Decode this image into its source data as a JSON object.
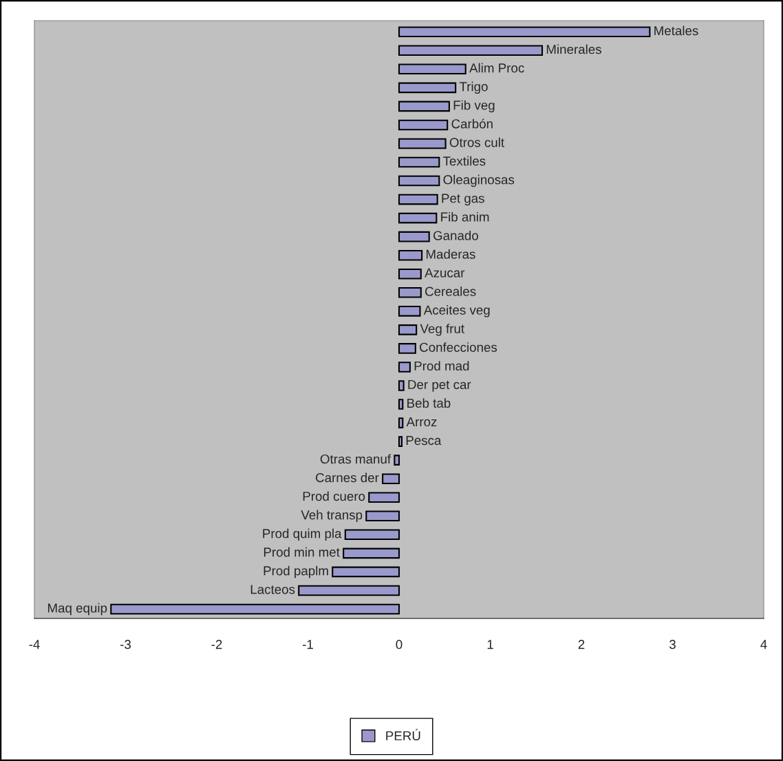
{
  "chart_data": {
    "type": "bar",
    "orientation": "horizontal",
    "categories": [
      "Metales",
      "Minerales",
      "Alim Proc",
      "Trigo",
      "Fib veg",
      "Carbón",
      "Otros cult",
      "Textiles",
      "Oleaginosas",
      "Pet gas",
      "Fib anim",
      "Ganado",
      "Maderas",
      "Azucar",
      "Cereales",
      "Aceites veg",
      "Veg frut",
      "Confecciones",
      "Prod mad",
      "Der pet car",
      "Beb tab",
      "Arroz",
      "Pesca",
      "Otras manuf",
      "Carnes der",
      "Prod cuero",
      "Veh transp",
      "Prod quim pla",
      "Prod min met",
      "Prod paplm",
      "Lacteos",
      "Maq equip"
    ],
    "series": [
      {
        "name": "PERÚ",
        "color": "#9999cc",
        "values": [
          2.75,
          1.57,
          0.73,
          0.62,
          0.55,
          0.53,
          0.51,
          0.44,
          0.44,
          0.42,
          0.41,
          0.33,
          0.25,
          0.24,
          0.24,
          0.23,
          0.19,
          0.18,
          0.12,
          0.05,
          0.04,
          0.04,
          0.03,
          -0.05,
          -0.18,
          -0.33,
          -0.36,
          -0.59,
          -0.61,
          -0.73,
          -1.1,
          -3.16
        ]
      }
    ],
    "xlim": [
      -4,
      4
    ],
    "xticks": [
      -4,
      -3,
      -2,
      -1,
      0,
      1,
      2,
      3,
      4
    ],
    "grid": false,
    "legend": "bottom",
    "tick_labels": "x"
  }
}
